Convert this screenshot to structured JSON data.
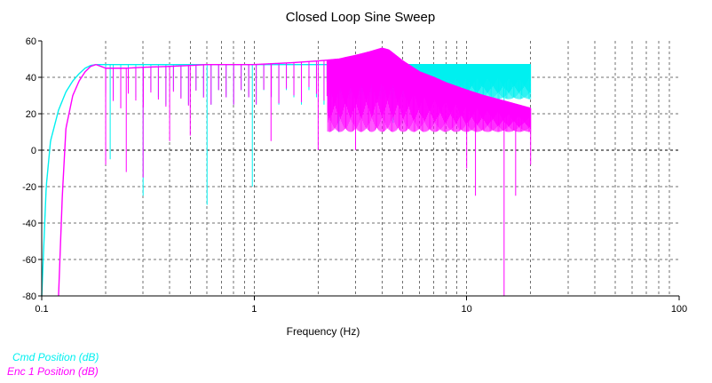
{
  "chart_data": {
    "type": "line",
    "title": "Closed Loop Sine Sweep",
    "xlabel": "Frequency (Hz)",
    "ylabel": "",
    "x_scale": "log",
    "xlim": [
      0.1,
      100
    ],
    "ylim": [
      -80,
      60
    ],
    "x_ticks": [
      "0.1",
      "1",
      "10",
      "100"
    ],
    "y_ticks": [
      "60",
      "40",
      "20",
      "0",
      "-20",
      "-40",
      "-60",
      "-80"
    ],
    "grid": true,
    "legend_position": "bottom-left",
    "series": [
      {
        "name": "Cmd Position (dB)",
        "color": "#00f0f0",
        "x": [
          0.1,
          0.105,
          0.11,
          0.12,
          0.13,
          0.14,
          0.15,
          0.16,
          0.17,
          0.18,
          0.19,
          0.2,
          0.25,
          0.3,
          0.4,
          0.5,
          0.6,
          0.8,
          1,
          1.5,
          2,
          2.5,
          3,
          4,
          5,
          7,
          10,
          15,
          20
        ],
        "values": [
          -80,
          -20,
          5,
          22,
          32,
          38,
          42,
          45,
          46.5,
          47,
          47,
          47,
          47,
          47,
          47,
          47,
          47,
          47,
          47,
          47,
          47,
          47,
          47,
          47,
          47,
          47,
          47,
          47,
          47
        ],
        "dips": [
          {
            "x": 0.21,
            "y": -5
          },
          {
            "x": 0.3,
            "y": -25
          },
          {
            "x": 0.6,
            "y": -30
          },
          {
            "x": 0.98,
            "y": -20
          },
          {
            "x": 2.5,
            "y": 10
          },
          {
            "x": 4.5,
            "y": 15
          },
          {
            "x": 10,
            "y": 20
          },
          {
            "x": 15,
            "y": 22
          }
        ],
        "band_from_x": 2.2,
        "band_low": 28
      },
      {
        "name": "Enc 1 Position (dB)",
        "color": "#ff00ff",
        "x": [
          0.12,
          0.125,
          0.13,
          0.14,
          0.15,
          0.16,
          0.17,
          0.18,
          0.19,
          0.2,
          0.25,
          0.3,
          0.4,
          0.5,
          0.6,
          0.8,
          1,
          1.5,
          2,
          2.5,
          3,
          3.5,
          4,
          4.3,
          5,
          6,
          7,
          8,
          10,
          12,
          15,
          20
        ],
        "values": [
          -80,
          -25,
          12,
          30,
          38,
          43,
          46,
          47,
          46,
          45,
          45,
          45.5,
          46,
          46.5,
          47,
          47,
          47,
          48,
          49,
          50,
          52,
          54,
          56,
          55,
          49,
          43,
          40,
          37,
          33,
          30,
          27,
          23
        ],
        "dips": [
          {
            "x": 0.2,
            "y": -8
          },
          {
            "x": 0.25,
            "y": -12
          },
          {
            "x": 0.3,
            "y": -15
          },
          {
            "x": 0.4,
            "y": 5
          },
          {
            "x": 0.5,
            "y": 8
          },
          {
            "x": 1.2,
            "y": 5
          },
          {
            "x": 2,
            "y": 0
          },
          {
            "x": 3,
            "y": 0
          },
          {
            "x": 10,
            "y": -10
          },
          {
            "x": 11,
            "y": -25
          },
          {
            "x": 15,
            "y": -80
          },
          {
            "x": 17,
            "y": -25
          },
          {
            "x": 20,
            "y": -8
          }
        ],
        "band_from_x": 2.2,
        "band_low": 10
      }
    ]
  }
}
